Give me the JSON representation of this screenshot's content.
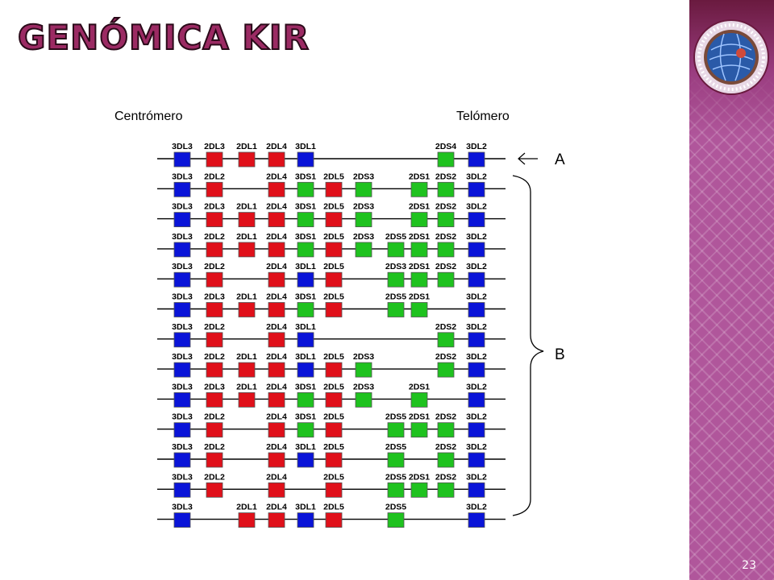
{
  "slide": {
    "title": "GENÓMICA KIR",
    "page_number": "23"
  },
  "diagram": {
    "centromere_label": "  Centrómero",
    "telomere_label": "Telómero  ",
    "group_a_label": "A",
    "group_b_label": "B",
    "colors": {
      "3DL": "#0a14d8",
      "2DL": "#e0101a",
      "DS": "#1fc21f",
      "box_border": "#555555",
      "line": "#000000"
    },
    "haplotypes": [
      [
        {
          "g": "3DL3",
          "c": 0
        },
        {
          "g": "2DL3",
          "c": 1
        },
        {
          "g": "2DL1",
          "c": 2
        },
        {
          "g": "2DL4",
          "c": 3
        },
        {
          "g": "3DL1",
          "c": 4
        },
        {
          "g": "2DS4",
          "c": 9
        },
        {
          "g": "3DL2",
          "c": 10
        }
      ],
      [
        {
          "g": "3DL3",
          "c": 0
        },
        {
          "g": "2DL2",
          "c": 1
        },
        {
          "g": "2DL4",
          "c": 3
        },
        {
          "g": "3DS1",
          "c": 4
        },
        {
          "g": "2DL5",
          "c": 5
        },
        {
          "g": "2DS3",
          "c": 6
        },
        {
          "g": "2DS1",
          "c": 8
        },
        {
          "g": "2DS2",
          "c": 9
        },
        {
          "g": "3DL2",
          "c": 10
        }
      ],
      [
        {
          "g": "3DL3",
          "c": 0
        },
        {
          "g": "2DL3",
          "c": 1
        },
        {
          "g": "2DL1",
          "c": 2
        },
        {
          "g": "2DL4",
          "c": 3
        },
        {
          "g": "3DS1",
          "c": 4
        },
        {
          "g": "2DL5",
          "c": 5
        },
        {
          "g": "2DS3",
          "c": 6
        },
        {
          "g": "2DS1",
          "c": 8
        },
        {
          "g": "2DS2",
          "c": 9
        },
        {
          "g": "3DL2",
          "c": 10
        }
      ],
      [
        {
          "g": "3DL3",
          "c": 0
        },
        {
          "g": "2DL2",
          "c": 1
        },
        {
          "g": "2DL1",
          "c": 2
        },
        {
          "g": "2DL4",
          "c": 3
        },
        {
          "g": "3DS1",
          "c": 4
        },
        {
          "g": "2DL5",
          "c": 5
        },
        {
          "g": "2DS3",
          "c": 6
        },
        {
          "g": "2DS5",
          "c": 7
        },
        {
          "g": "2DS1",
          "c": 8
        },
        {
          "g": "2DS2",
          "c": 9
        },
        {
          "g": "3DL2",
          "c": 10
        }
      ],
      [
        {
          "g": "3DL3",
          "c": 0
        },
        {
          "g": "2DL2",
          "c": 1
        },
        {
          "g": "2DL4",
          "c": 3
        },
        {
          "g": "3DL1",
          "c": 4
        },
        {
          "g": "2DL5",
          "c": 5
        },
        {
          "g": "2DS3",
          "c": 7
        },
        {
          "g": "2DS1",
          "c": 8
        },
        {
          "g": "2DS2",
          "c": 9
        },
        {
          "g": "3DL2",
          "c": 10
        }
      ],
      [
        {
          "g": "3DL3",
          "c": 0
        },
        {
          "g": "2DL3",
          "c": 1
        },
        {
          "g": "2DL1",
          "c": 2
        },
        {
          "g": "2DL4",
          "c": 3
        },
        {
          "g": "3DS1",
          "c": 4
        },
        {
          "g": "2DL5",
          "c": 5
        },
        {
          "g": "2DS5",
          "c": 7
        },
        {
          "g": "2DS1",
          "c": 8
        },
        {
          "g": "3DL2",
          "c": 10
        }
      ],
      [
        {
          "g": "3DL3",
          "c": 0
        },
        {
          "g": "2DL2",
          "c": 1
        },
        {
          "g": "2DL4",
          "c": 3
        },
        {
          "g": "3DL1",
          "c": 4
        },
        {
          "g": "2DS2",
          "c": 9
        },
        {
          "g": "3DL2",
          "c": 10
        }
      ],
      [
        {
          "g": "3DL3",
          "c": 0
        },
        {
          "g": "2DL2",
          "c": 1
        },
        {
          "g": "2DL1",
          "c": 2
        },
        {
          "g": "2DL4",
          "c": 3
        },
        {
          "g": "3DL1",
          "c": 4
        },
        {
          "g": "2DL5",
          "c": 5
        },
        {
          "g": "2DS3",
          "c": 6
        },
        {
          "g": "2DS2",
          "c": 9
        },
        {
          "g": "3DL2",
          "c": 10
        }
      ],
      [
        {
          "g": "3DL3",
          "c": 0
        },
        {
          "g": "2DL3",
          "c": 1
        },
        {
          "g": "2DL1",
          "c": 2
        },
        {
          "g": "2DL4",
          "c": 3
        },
        {
          "g": "3DS1",
          "c": 4
        },
        {
          "g": "2DL5",
          "c": 5
        },
        {
          "g": "2DS3",
          "c": 6
        },
        {
          "g": "2DS1",
          "c": 8
        },
        {
          "g": "3DL2",
          "c": 10
        }
      ],
      [
        {
          "g": "3DL3",
          "c": 0
        },
        {
          "g": "2DL2",
          "c": 1
        },
        {
          "g": "2DL4",
          "c": 3
        },
        {
          "g": "3DS1",
          "c": 4
        },
        {
          "g": "2DL5",
          "c": 5
        },
        {
          "g": "2DS5",
          "c": 7
        },
        {
          "g": "2DS1",
          "c": 8
        },
        {
          "g": "2DS2",
          "c": 9
        },
        {
          "g": "3DL2",
          "c": 10
        }
      ],
      [
        {
          "g": "3DL3",
          "c": 0
        },
        {
          "g": "2DL2",
          "c": 1
        },
        {
          "g": "2DL4",
          "c": 3
        },
        {
          "g": "3DL1",
          "c": 4
        },
        {
          "g": "2DL5",
          "c": 5
        },
        {
          "g": "2DS5",
          "c": 7
        },
        {
          "g": "2DS2",
          "c": 9
        },
        {
          "g": "3DL2",
          "c": 10
        }
      ],
      [
        {
          "g": "3DL3",
          "c": 0
        },
        {
          "g": "2DL2",
          "c": 1
        },
        {
          "g": "2DL4",
          "c": 3
        },
        {
          "g": "2DL5",
          "c": 5
        },
        {
          "g": "2DS5",
          "c": 7
        },
        {
          "g": "2DS1",
          "c": 8
        },
        {
          "g": "2DS2",
          "c": 9
        },
        {
          "g": "3DL2",
          "c": 10
        }
      ],
      [
        {
          "g": "3DL3",
          "c": 0
        },
        {
          "g": "2DL1",
          "c": 2
        },
        {
          "g": "2DL4",
          "c": 3
        },
        {
          "g": "3DL1",
          "c": 4
        },
        {
          "g": "2DL5",
          "c": 5
        },
        {
          "g": "2DS5",
          "c": 7
        },
        {
          "g": "3DL2",
          "c": 10
        }
      ]
    ]
  }
}
